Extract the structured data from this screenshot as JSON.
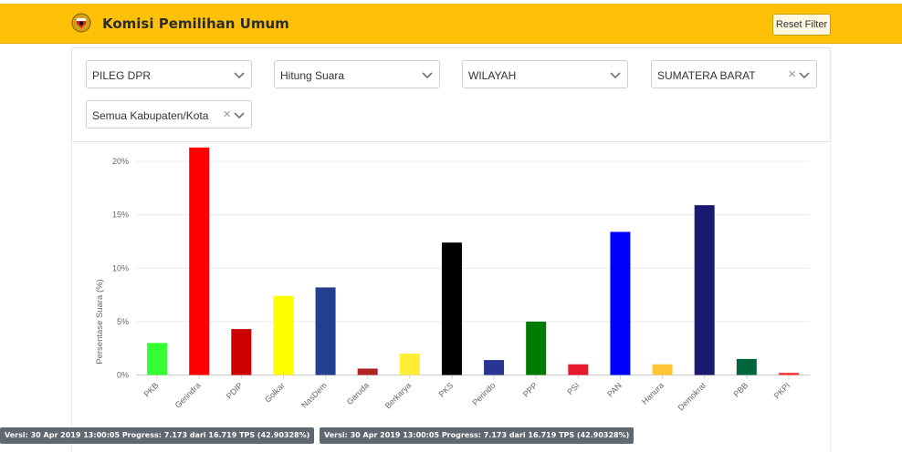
{
  "header": {
    "title": "Komisi Pemilihan Umum",
    "reset_label": "Reset Filter",
    "bg_color": "#ffc107"
  },
  "filters": [
    {
      "value": "PILEG DPR",
      "clearable": false
    },
    {
      "value": "Hitung Suara",
      "clearable": false
    },
    {
      "value": "WILAYAH",
      "clearable": false
    },
    {
      "value": "SUMATERA BARAT",
      "clearable": true
    },
    {
      "value": "Semua Kabupaten/Kota",
      "clearable": true
    }
  ],
  "chart_data": {
    "type": "bar",
    "ylabel": "Persentase Suara (%)",
    "ylim": [
      0,
      22
    ],
    "yticks": [
      0,
      5,
      10,
      15,
      20
    ],
    "ytick_labels": [
      "0%",
      "5%",
      "10%",
      "15%",
      "20%"
    ],
    "grid": true,
    "categories": [
      "PKB",
      "Gerindra",
      "PDIP",
      "Golkar",
      "NasDem",
      "Garuda",
      "Berkarya",
      "PKS",
      "Perindo",
      "PPP",
      "PSI",
      "PAN",
      "Hanura",
      "Demokrat",
      "PBB",
      "PKPI"
    ],
    "values": [
      3.0,
      21.3,
      4.3,
      7.4,
      8.2,
      0.6,
      2.0,
      12.4,
      1.4,
      5.0,
      1.0,
      13.4,
      1.0,
      15.9,
      1.5,
      0.2
    ],
    "colors": [
      "#33ff33",
      "#ff0000",
      "#cc0000",
      "#ffff00",
      "#23408e",
      "#b22222",
      "#ffee33",
      "#000000",
      "#283593",
      "#007a00",
      "#e8192c",
      "#0000ff",
      "#ffc533",
      "#1a1a6e",
      "#00663d",
      "#ff3333"
    ]
  },
  "status_bars": [
    "Versi: 30 Apr 2019 13:00:05 Progress: 7.173 dari 16.719 TPS (42.90328%)",
    "Versi: 30 Apr 2019 13:00:05 Progress: 7.173 dari 16.719 TPS (42.90328%)"
  ]
}
